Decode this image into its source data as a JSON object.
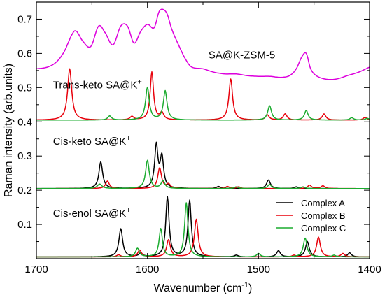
{
  "chart_data": {
    "type": "line",
    "title": "",
    "xlabel": "Wavenumber (cm",
    "xlabel_sup": "-1",
    "xlabel_tail": ")",
    "ylabel": "Raman intensity (arb.units)",
    "xlim": [
      1700,
      1400
    ],
    "xaxis_reversed": true,
    "ylim": [
      0,
      0.75
    ],
    "x_ticks": [
      1700,
      1600,
      1500,
      1400
    ],
    "x_tick_labels": [
      "1700",
      "1600",
      "1500",
      "1400"
    ],
    "y_ticks": [
      0.1,
      0.2,
      0.3,
      0.4,
      0.5,
      0.6,
      0.7
    ],
    "y_tick_labels": [
      "0.1",
      "0.2",
      "0.3",
      "0.4",
      "0.5",
      "0.6",
      "0.7"
    ],
    "grid": false,
    "legend_position": "lower-right",
    "legend": [
      {
        "name": "Complex A",
        "color": "#000000"
      },
      {
        "name": "Complex B",
        "color": "#e8000b"
      },
      {
        "name": "Complex C",
        "color": "#1aab2e"
      }
    ],
    "annotations": [
      {
        "text": "SA@K-ZSM-5",
        "x": 1545,
        "y": 0.585,
        "sup": ""
      },
      {
        "text": "Trans-keto SA@K",
        "x": 1685,
        "y": 0.498,
        "sup": "+"
      },
      {
        "text": "Cis-keto SA@K",
        "x": 1685,
        "y": 0.333,
        "sup": "+"
      },
      {
        "text": "Cis-enol SA@K",
        "x": 1685,
        "y": 0.123,
        "sup": "+"
      }
    ],
    "series": [
      {
        "name": "SA@K-ZSM-5",
        "color": "#dd00dd",
        "x": [
          1700,
          1690,
          1682,
          1675,
          1668,
          1664,
          1658,
          1651,
          1644,
          1638,
          1631,
          1624,
          1618,
          1612,
          1606,
          1600,
          1594,
          1589,
          1583,
          1578,
          1572,
          1566,
          1560,
          1550,
          1540,
          1530,
          1520,
          1510,
          1500,
          1490,
          1480,
          1472,
          1466,
          1461,
          1457,
          1453,
          1448,
          1440,
          1430,
          1420,
          1410,
          1400
        ],
        "y": [
          0.555,
          0.56,
          0.575,
          0.605,
          0.655,
          0.665,
          0.635,
          0.62,
          0.68,
          0.66,
          0.625,
          0.68,
          0.68,
          0.63,
          0.665,
          0.685,
          0.675,
          0.725,
          0.72,
          0.67,
          0.625,
          0.585,
          0.56,
          0.555,
          0.545,
          0.54,
          0.54,
          0.535,
          0.533,
          0.533,
          0.53,
          0.535,
          0.555,
          0.59,
          0.6,
          0.555,
          0.535,
          0.525,
          0.525,
          0.535,
          0.545,
          0.56
        ]
      },
      {
        "name": "Trans-keto Complex B",
        "color": "#e8000b",
        "baseline": 0.405,
        "peaks": [
          [
            1670,
            0.15,
            2.2
          ],
          [
            1596,
            0.14,
            1.8
          ],
          [
            1587,
            0.02,
            2
          ],
          [
            1525,
            0.12,
            2
          ],
          [
            1492,
            0.015,
            2
          ],
          [
            1476,
            0.018,
            2
          ],
          [
            1441,
            0.018,
            2
          ],
          [
            1614,
            0.01,
            2
          ],
          [
            1404,
            0.008,
            2
          ]
        ]
      },
      {
        "name": "Trans-keto Complex C",
        "color": "#1aab2e",
        "baseline": 0.405,
        "peaks": [
          [
            1634,
            0.012,
            2
          ],
          [
            1600,
            0.095,
            2
          ],
          [
            1584,
            0.085,
            2
          ],
          [
            1490,
            0.042,
            2
          ],
          [
            1457,
            0.028,
            2
          ],
          [
            1416,
            0.007,
            2
          ],
          [
            1402,
            0.005,
            2
          ]
        ]
      },
      {
        "name": "Cis-keto Complex A",
        "color": "#000000",
        "baseline": 0.205,
        "peaks": [
          [
            1642,
            0.078,
            2
          ],
          [
            1592,
            0.125,
            1.8
          ],
          [
            1587,
            0.09,
            1.8
          ],
          [
            1536,
            0.006,
            2
          ],
          [
            1491,
            0.025,
            2
          ],
          [
            1466,
            0.005,
            2
          ]
        ]
      },
      {
        "name": "Cis-keto Complex B",
        "color": "#e8000b",
        "baseline": 0.205,
        "peaks": [
          [
            1636,
            0.022,
            2
          ],
          [
            1589,
            0.06,
            2
          ],
          [
            1581,
            0.012,
            2
          ],
          [
            1528,
            0.006,
            2
          ],
          [
            1518,
            0.005,
            2
          ],
          [
            1454,
            0.01,
            2
          ],
          [
            1442,
            0.008,
            2
          ]
        ]
      },
      {
        "name": "Cis-keto Complex C",
        "color": "#1aab2e",
        "baseline": 0.205,
        "peaks": [
          [
            1600,
            0.082,
            2
          ],
          [
            1586,
            0.022,
            2
          ],
          [
            1643,
            0.013,
            2.5
          ],
          [
            1490,
            0.012,
            2
          ],
          [
            1520,
            0.005,
            2
          ],
          [
            1460,
            0.005,
            2
          ]
        ]
      },
      {
        "name": "Cis-enol Complex A",
        "color": "#000000",
        "baseline": 0.005,
        "peaks": [
          [
            1624,
            0.082,
            2
          ],
          [
            1582,
            0.175,
            1.8
          ],
          [
            1562,
            0.165,
            1.8
          ],
          [
            1482,
            0.018,
            2
          ],
          [
            1456,
            0.045,
            2
          ],
          [
            1418,
            0.012,
            2
          ],
          [
            1606,
            0.01,
            2
          ],
          [
            1520,
            0.005,
            2
          ]
        ]
      },
      {
        "name": "Cis-enol Complex B",
        "color": "#e8000b",
        "baseline": 0.005,
        "peaks": [
          [
            1607,
            0.02,
            2
          ],
          [
            1581,
            0.05,
            2
          ],
          [
            1556,
            0.11,
            2
          ],
          [
            1446,
            0.058,
            2
          ],
          [
            1424,
            0.01,
            2
          ],
          [
            1626,
            0.006,
            2
          ],
          [
            1468,
            0.005,
            2
          ]
        ]
      },
      {
        "name": "Cis-enol Complex C",
        "color": "#1aab2e",
        "baseline": 0.005,
        "peaks": [
          [
            1609,
            0.025,
            2
          ],
          [
            1588,
            0.082,
            1.8
          ],
          [
            1565,
            0.158,
            1.8
          ],
          [
            1500,
            0.01,
            2
          ],
          [
            1458,
            0.055,
            2
          ],
          [
            1432,
            0.005,
            2
          ]
        ]
      }
    ]
  }
}
